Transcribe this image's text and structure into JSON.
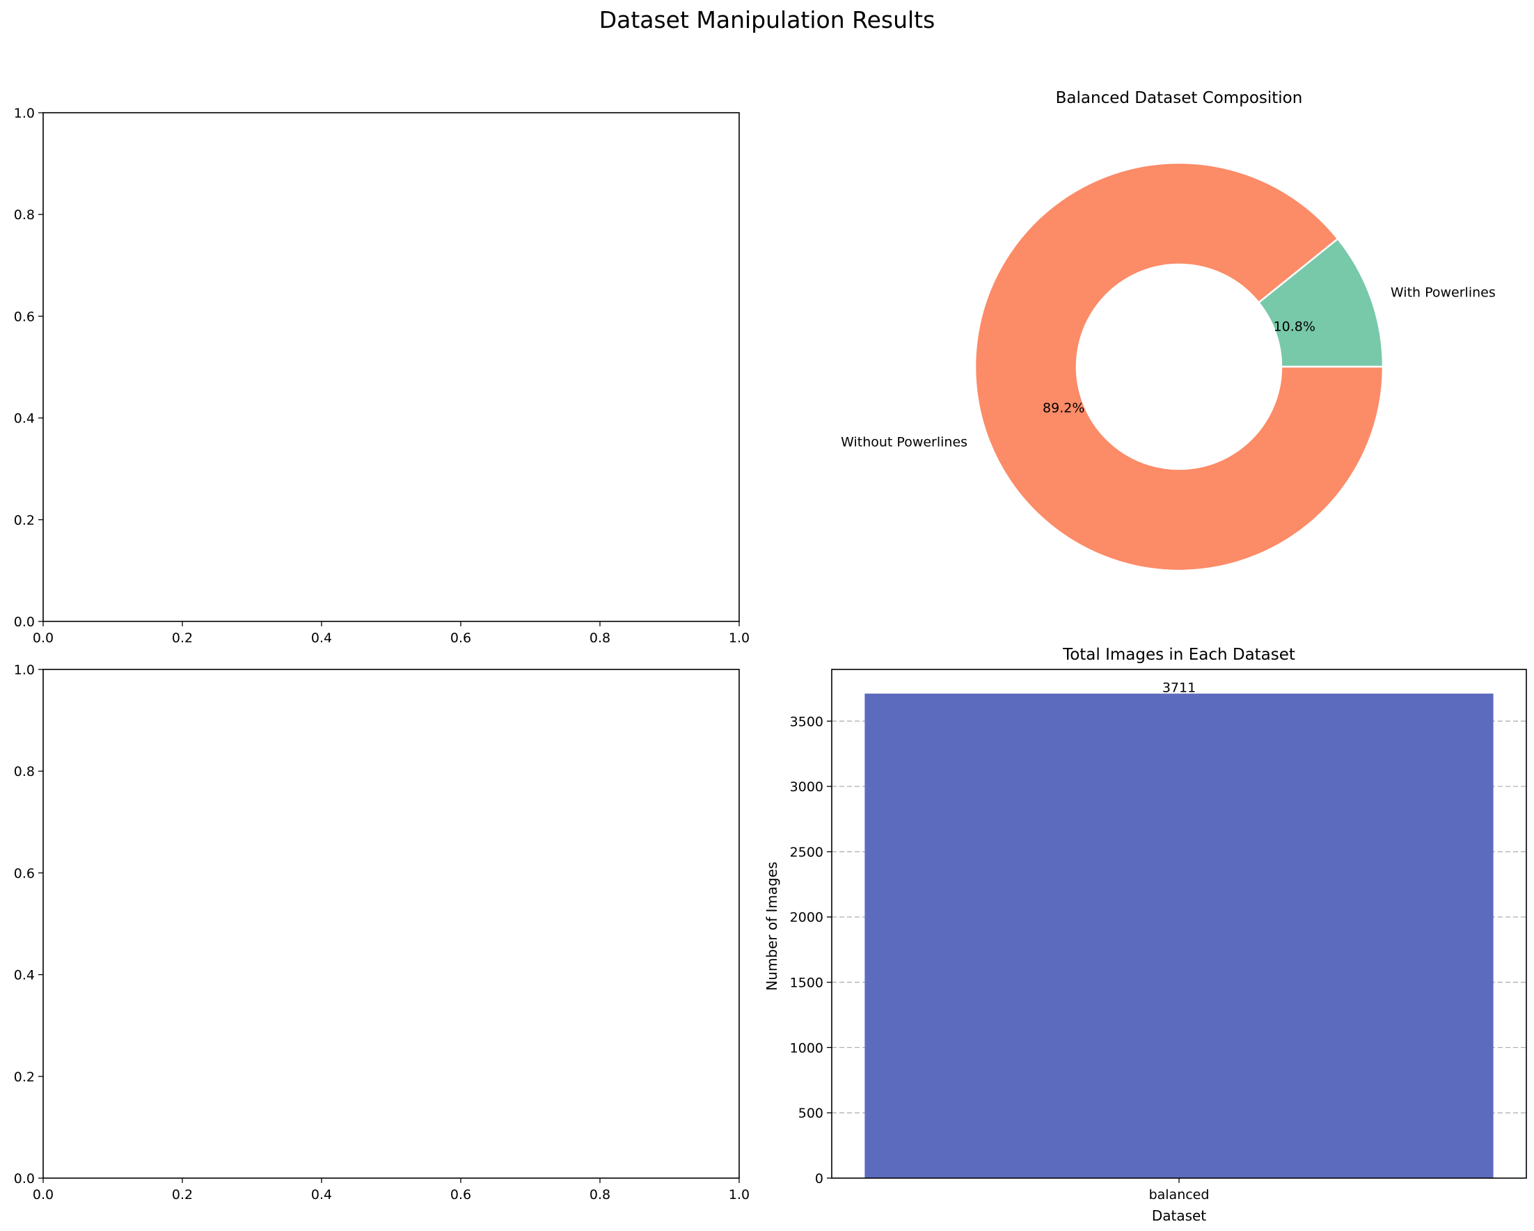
{
  "figure": {
    "suptitle": "Dataset Manipulation Results"
  },
  "chart_data": [
    {
      "type": "empty",
      "position": "top-left",
      "xlim": [
        0,
        1
      ],
      "ylim": [
        0,
        1
      ],
      "xticks": [
        "0.0",
        "0.2",
        "0.4",
        "0.6",
        "0.8",
        "1.0"
      ],
      "yticks": [
        "0.0",
        "0.2",
        "0.4",
        "0.6",
        "0.8",
        "1.0"
      ]
    },
    {
      "type": "pie",
      "subtype": "donut",
      "position": "top-right",
      "title": "Balanced Dataset Composition",
      "labels": [
        "With Powerlines",
        "Without Powerlines"
      ],
      "percent_labels": [
        "10.8%",
        "89.2%"
      ],
      "values": [
        10.8,
        89.2
      ],
      "colors": [
        "#78c8aa",
        "#fc8b67"
      ],
      "start_angle": 0
    },
    {
      "type": "empty",
      "position": "bottom-left",
      "xlim": [
        0,
        1
      ],
      "ylim": [
        0,
        1
      ],
      "xticks": [
        "0.0",
        "0.2",
        "0.4",
        "0.6",
        "0.8",
        "1.0"
      ],
      "yticks": [
        "0.0",
        "0.2",
        "0.4",
        "0.6",
        "0.8",
        "1.0"
      ]
    },
    {
      "type": "bar",
      "position": "bottom-right",
      "title": "Total Images in Each Dataset",
      "xlabel": "Dataset",
      "ylabel": "Number of Images",
      "categories": [
        "balanced"
      ],
      "values": [
        3711
      ],
      "value_labels": [
        "3711"
      ],
      "color": "#5d6bbf",
      "ylim": [
        0,
        3896
      ],
      "yticks": [
        0,
        500,
        1000,
        1500,
        2000,
        2500,
        3000,
        3500
      ],
      "ytick_labels": [
        "0",
        "500",
        "1000",
        "1500",
        "2000",
        "2500",
        "3000",
        "3500"
      ],
      "grid": "y-dashed"
    }
  ]
}
